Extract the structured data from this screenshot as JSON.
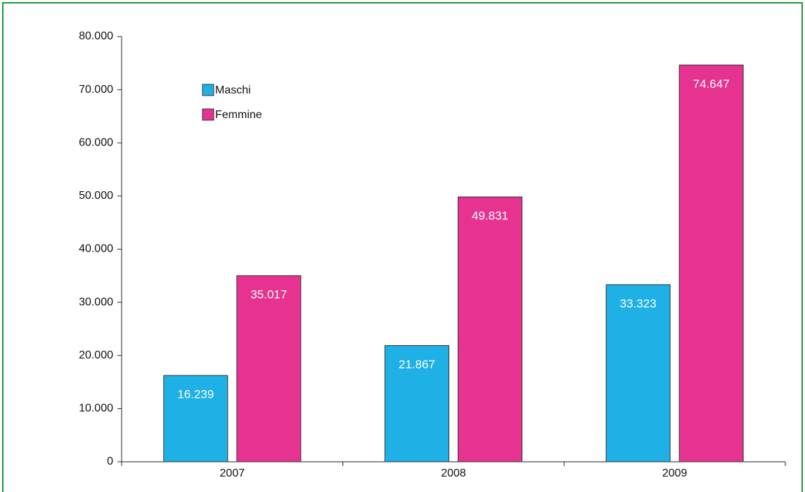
{
  "chart_data": {
    "type": "bar",
    "categories": [
      "2007",
      "2008",
      "2009"
    ],
    "series": [
      {
        "name": "Maschi",
        "color": "#1fb0e6",
        "values": [
          16239,
          21867,
          33323
        ],
        "value_labels": [
          "16.239",
          "21.867",
          "33.323"
        ]
      },
      {
        "name": "Femmine",
        "color": "#e6338f",
        "values": [
          35017,
          49831,
          74647
        ],
        "value_labels": [
          "35.017",
          "49.831",
          "74.647"
        ]
      }
    ],
    "ylim": [
      0,
      80000
    ],
    "yticks": [
      0,
      {
        "value": 10000,
        "label": "10.000"
      },
      {
        "value": 20000,
        "label": "20.000"
      },
      {
        "value": 30000,
        "label": "30.000"
      },
      {
        "value": 40000,
        "label": "40.000"
      },
      {
        "value": 50000,
        "label": "50.000"
      },
      {
        "value": 60000,
        "label": "60.000"
      },
      {
        "value": 70000,
        "label": "70.000"
      },
      {
        "value": 80000,
        "label": "80.000"
      }
    ],
    "legend": "upper left"
  }
}
